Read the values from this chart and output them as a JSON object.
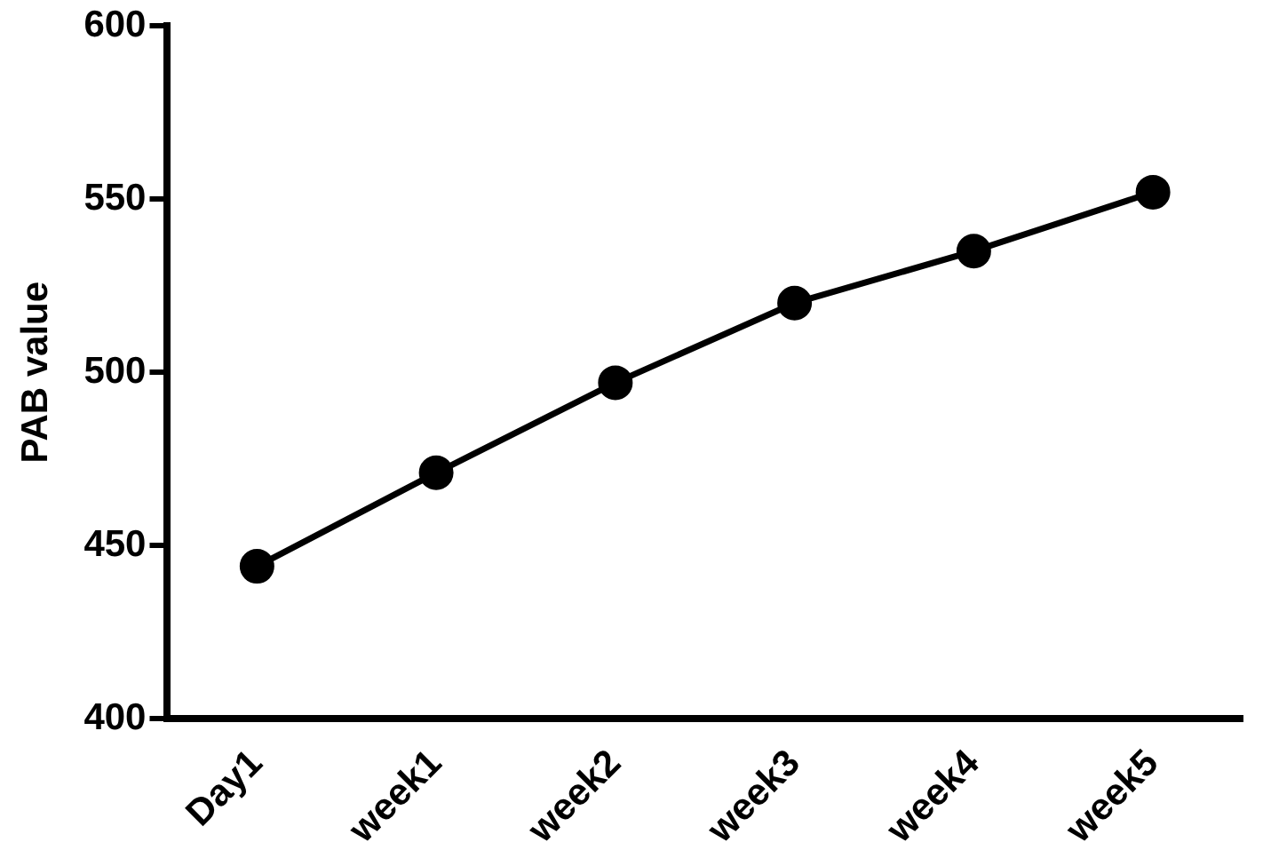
{
  "chart_data": {
    "type": "line",
    "ylabel": "PAB value",
    "categories": [
      "Day1",
      "week1",
      "week2",
      "week3",
      "week4",
      "week5"
    ],
    "series": [
      {
        "color": "#000000",
        "values": [
          444,
          471,
          497,
          520,
          535,
          552
        ]
      }
    ],
    "ylim": [
      400,
      600
    ],
    "yticks": [
      400,
      450,
      500,
      550,
      600
    ],
    "grid": false,
    "legend": false,
    "marker": "circle",
    "line_style": "solid"
  }
}
